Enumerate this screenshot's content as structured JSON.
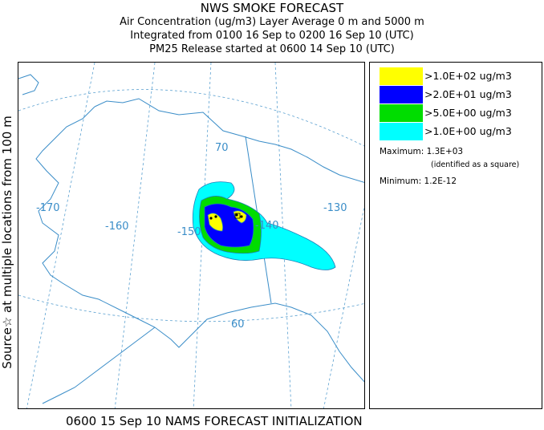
{
  "header": {
    "title": "NWS SMOKE FORECAST",
    "line2": "Air Concentration (ug/m3) Layer Average    0 m and  5000 m",
    "line3": "Integrated from 0100 16 Sep to 0200 16 Sep 10 (UTC)",
    "line4": "PM25 Release started at 0600 14 Sep 10 (UTC)"
  },
  "side_label": "Source☆  at multiple locations   from  100 m",
  "map": {
    "lon_labels": [
      "-170",
      "-160",
      "-150",
      "-140",
      "-130"
    ],
    "lat_labels": [
      "70",
      "60"
    ],
    "colors": {
      "land_outline": "#3a8dc8",
      "grid": "#5aa0d0"
    }
  },
  "legend": {
    "items": [
      {
        "label": ">1.0E+02 ug/m3",
        "color": "#ffff00"
      },
      {
        "label": ">2.0E+01 ug/m3",
        "color": "#0000ff"
      },
      {
        "label": ">5.0E+00 ug/m3",
        "color": "#00dd00"
      },
      {
        "label": ">1.0E+00 ug/m3",
        "color": "#00ffff"
      }
    ],
    "maximum": "Maximum: 1.3E+03",
    "maximum_note": "(identified as a square)",
    "minimum": "Minimum: 1.2E-12"
  },
  "footer": "0600 15 Sep 10 NAMS FORECAST INITIALIZATION"
}
